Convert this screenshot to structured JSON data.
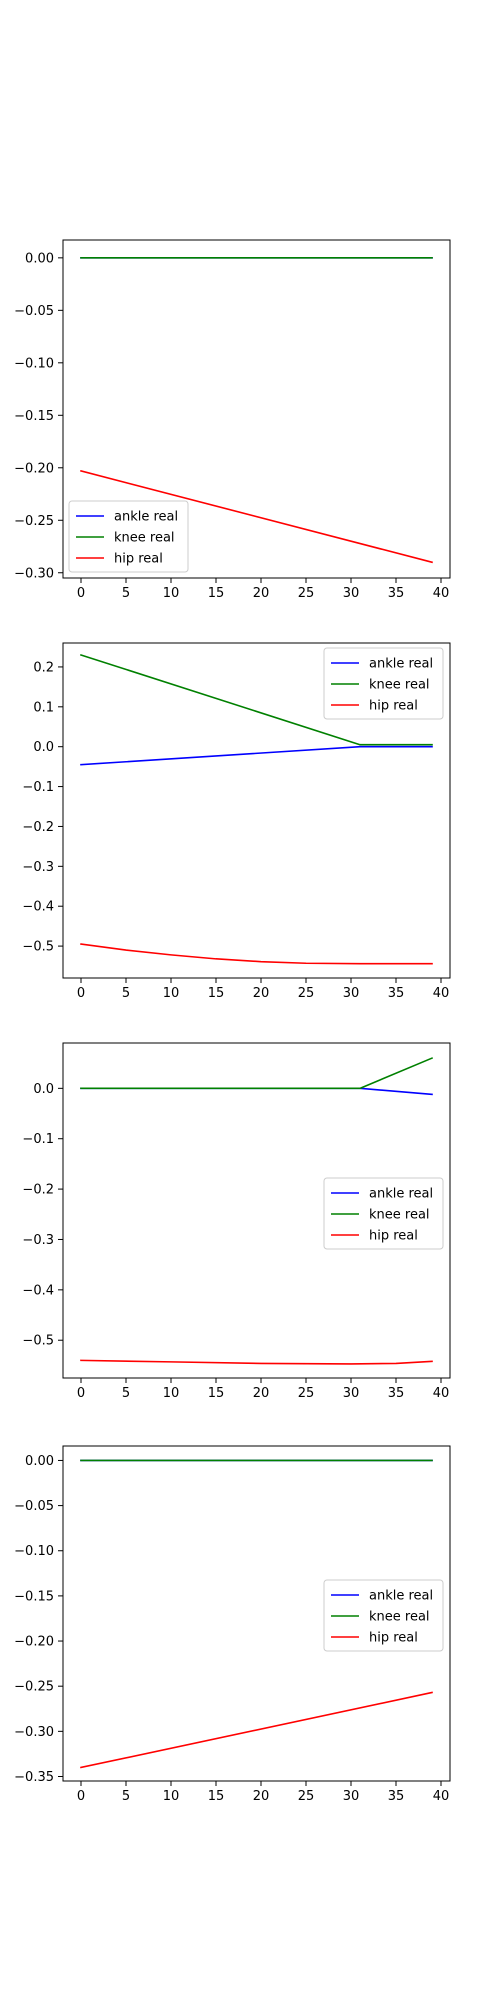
{
  "chart_data": [
    {
      "type": "line",
      "x": {
        "start": 0,
        "end": 39
      },
      "xlim": [
        -2,
        41
      ],
      "ylim": [
        -0.305,
        0.017
      ],
      "xticks": [
        0,
        5,
        10,
        15,
        20,
        25,
        30,
        35,
        40
      ],
      "xtick_labels": [
        "0",
        "5",
        "10",
        "15",
        "20",
        "25",
        "30",
        "35",
        "40"
      ],
      "yticks": [
        0.0,
        -0.05,
        -0.1,
        -0.15,
        -0.2,
        -0.25,
        -0.3
      ],
      "ytick_labels": [
        "0.00",
        "−0.05",
        "−0.10",
        "−0.15",
        "−0.20",
        "−0.25",
        "−0.30"
      ],
      "legend_position": "lower-left",
      "series": [
        {
          "name": "ankle real",
          "color": "#0000ff",
          "points": [
            [
              0,
              0.0
            ],
            [
              39,
              0.0
            ]
          ]
        },
        {
          "name": "knee real",
          "color": "#008000",
          "points": [
            [
              0,
              0.0
            ],
            [
              39,
              0.0
            ]
          ]
        },
        {
          "name": "hip real",
          "color": "#ff0000",
          "points": [
            [
              0,
              -0.203
            ],
            [
              39,
              -0.29
            ]
          ]
        }
      ]
    },
    {
      "type": "line",
      "x": {
        "start": 0,
        "end": 39
      },
      "xlim": [
        -2,
        41
      ],
      "ylim": [
        -0.58,
        0.26
      ],
      "xticks": [
        0,
        5,
        10,
        15,
        20,
        25,
        30,
        35,
        40
      ],
      "xtick_labels": [
        "0",
        "5",
        "10",
        "15",
        "20",
        "25",
        "30",
        "35",
        "40"
      ],
      "yticks": [
        0.2,
        0.1,
        0.0,
        -0.1,
        -0.2,
        -0.3,
        -0.4,
        -0.5
      ],
      "ytick_labels": [
        "0.2",
        "0.1",
        "0.0",
        "−0.1",
        "−0.2",
        "−0.3",
        "−0.4",
        "−0.5"
      ],
      "legend_position": "top-right",
      "series": [
        {
          "name": "ankle real",
          "color": "#0000ff",
          "points": [
            [
              0,
              -0.045
            ],
            [
              31,
              0.0
            ],
            [
              39,
              0.0
            ]
          ]
        },
        {
          "name": "knee real",
          "color": "#008000",
          "points": [
            [
              0,
              0.23
            ],
            [
              31,
              0.005
            ],
            [
              39,
              0.005
            ]
          ]
        },
        {
          "name": "hip real",
          "color": "#ff0000",
          "points": [
            [
              0,
              -0.495
            ],
            [
              5,
              -0.51
            ],
            [
              10,
              -0.522
            ],
            [
              15,
              -0.532
            ],
            [
              20,
              -0.539
            ],
            [
              25,
              -0.543
            ],
            [
              31,
              -0.544
            ],
            [
              39,
              -0.544
            ]
          ]
        }
      ]
    },
    {
      "type": "line",
      "x": {
        "start": 0,
        "end": 39
      },
      "xlim": [
        -2,
        41
      ],
      "ylim": [
        -0.575,
        0.09
      ],
      "xticks": [
        0,
        5,
        10,
        15,
        20,
        25,
        30,
        35,
        40
      ],
      "xtick_labels": [
        "0",
        "5",
        "10",
        "15",
        "20",
        "25",
        "30",
        "35",
        "40"
      ],
      "yticks": [
        0.0,
        -0.1,
        -0.2,
        -0.3,
        -0.4,
        -0.5
      ],
      "ytick_labels": [
        "0.0",
        "−0.1",
        "−0.2",
        "−0.3",
        "−0.4",
        "−0.5"
      ],
      "legend_position": "center-right",
      "series": [
        {
          "name": "ankle real",
          "color": "#0000ff",
          "points": [
            [
              0,
              0.0
            ],
            [
              31,
              0.0
            ],
            [
              39,
              -0.012
            ]
          ]
        },
        {
          "name": "knee real",
          "color": "#008000",
          "points": [
            [
              0,
              0.0
            ],
            [
              31,
              0.0
            ],
            [
              39,
              0.06
            ]
          ]
        },
        {
          "name": "hip real",
          "color": "#ff0000",
          "points": [
            [
              0,
              -0.54
            ],
            [
              10,
              -0.543
            ],
            [
              20,
              -0.546
            ],
            [
              30,
              -0.547
            ],
            [
              35,
              -0.546
            ],
            [
              39,
              -0.542
            ]
          ]
        }
      ]
    },
    {
      "type": "line",
      "x": {
        "start": 0,
        "end": 39
      },
      "xlim": [
        -2,
        41
      ],
      "ylim": [
        -0.355,
        0.016
      ],
      "xticks": [
        0,
        5,
        10,
        15,
        20,
        25,
        30,
        35,
        40
      ],
      "xtick_labels": [
        "0",
        "5",
        "10",
        "15",
        "20",
        "25",
        "30",
        "35",
        "40"
      ],
      "yticks": [
        0.0,
        -0.05,
        -0.1,
        -0.15,
        -0.2,
        -0.25,
        -0.3,
        -0.35
      ],
      "ytick_labels": [
        "0.00",
        "−0.05",
        "−0.10",
        "−0.15",
        "−0.20",
        "−0.25",
        "−0.30",
        "−0.35"
      ],
      "legend_position": "center-right",
      "series": [
        {
          "name": "ankle real",
          "color": "#0000ff",
          "points": [
            [
              0,
              0.0
            ],
            [
              39,
              0.0
            ]
          ]
        },
        {
          "name": "knee real",
          "color": "#008000",
          "points": [
            [
              0,
              0.0
            ],
            [
              39,
              0.0
            ]
          ]
        },
        {
          "name": "hip real",
          "color": "#ff0000",
          "points": [
            [
              0,
              -0.34
            ],
            [
              39,
              -0.257
            ]
          ]
        }
      ]
    }
  ]
}
